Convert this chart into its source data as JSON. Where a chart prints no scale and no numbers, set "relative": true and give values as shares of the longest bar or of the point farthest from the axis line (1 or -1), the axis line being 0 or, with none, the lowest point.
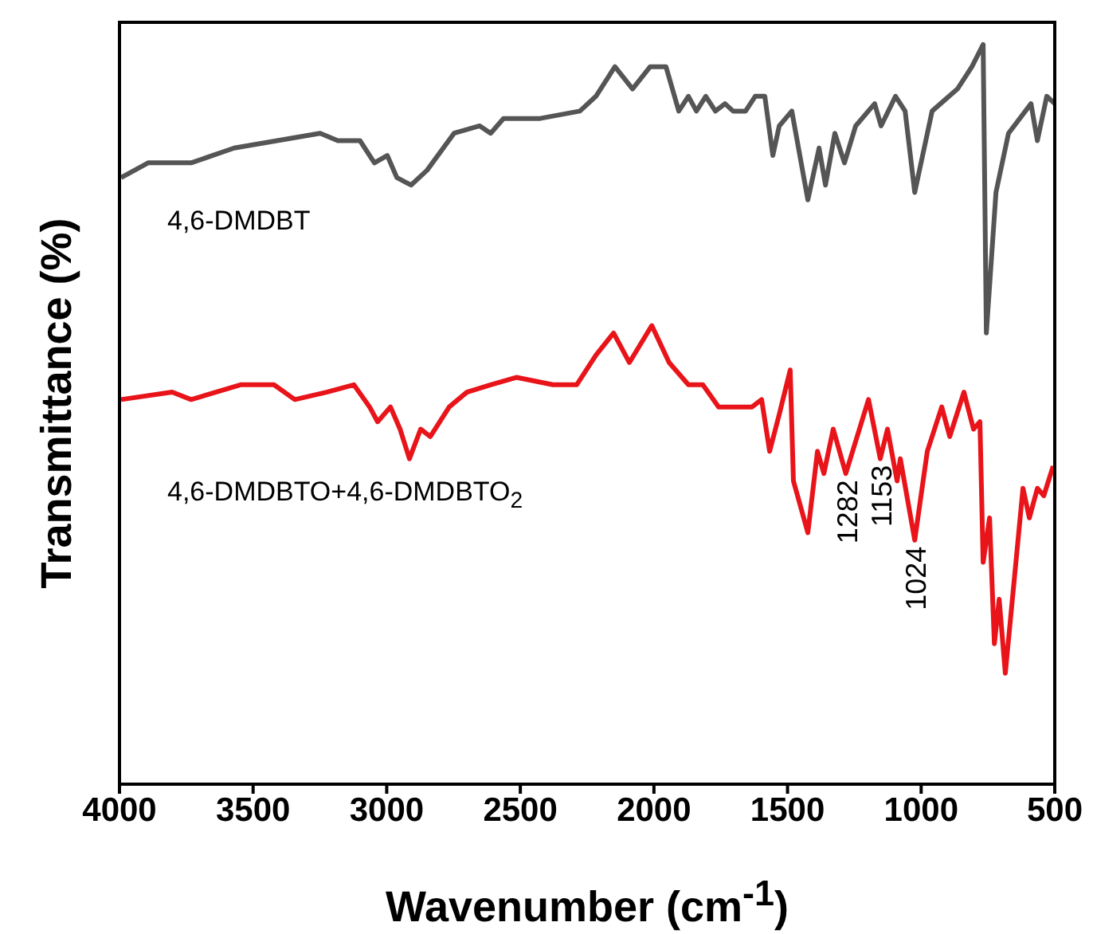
{
  "chart_data": {
    "type": "line",
    "relative": true,
    "xlabel": "Wavenumber (cm$^{-1}$)",
    "ylabel": "Transmittance (%)",
    "xlim": [
      4000,
      500
    ],
    "xticks": [
      4000,
      3500,
      3000,
      2500,
      2000,
      1500,
      1000,
      500
    ],
    "grid": false,
    "legend": false,
    "marker": "none",
    "line_style": "solid",
    "annotations": [
      {
        "text": "1282",
        "x": 1282,
        "y": 0.42
      },
      {
        "text": "1153",
        "x": 1153,
        "y": 0.44
      },
      {
        "text": "1024",
        "x": 1024,
        "y": 0.33
      }
    ],
    "series": [
      {
        "name": "4,6-DMDBT",
        "color": "#555555",
        "x": [
          3994,
          3893,
          3732,
          3571,
          3410,
          3249,
          3183,
          3100,
          3046,
          2998,
          2962,
          2909,
          2849,
          2748,
          2652,
          2611,
          2563,
          2426,
          2277,
          2217,
          2146,
          2080,
          2014,
          1955,
          1907,
          1871,
          1841,
          1806,
          1770,
          1734,
          1704,
          1657,
          1621,
          1585,
          1555,
          1531,
          1484,
          1424,
          1382,
          1358,
          1323,
          1287,
          1245,
          1174,
          1150,
          1096,
          1060,
          1024,
          959,
          864,
          810,
          768,
          756,
          720,
          673,
          589,
          565,
          530,
          500
        ],
        "values": [
          0.82,
          0.84,
          0.84,
          0.86,
          0.87,
          0.88,
          0.87,
          0.87,
          0.84,
          0.85,
          0.82,
          0.81,
          0.83,
          0.88,
          0.89,
          0.88,
          0.9,
          0.9,
          0.91,
          0.93,
          0.97,
          0.94,
          0.97,
          0.97,
          0.91,
          0.93,
          0.91,
          0.93,
          0.91,
          0.92,
          0.91,
          0.91,
          0.93,
          0.93,
          0.85,
          0.89,
          0.91,
          0.79,
          0.86,
          0.81,
          0.88,
          0.84,
          0.89,
          0.92,
          0.89,
          0.93,
          0.91,
          0.8,
          0.91,
          0.94,
          0.97,
          1.0,
          0.61,
          0.8,
          0.88,
          0.92,
          0.87,
          0.93,
          0.92
        ]
      },
      {
        "name": "4,6-DMDBTO+4,6-DMDBTO$_{2}$",
        "color": "#e8141a",
        "x": [
          3994,
          3803,
          3732,
          3547,
          3422,
          3344,
          3225,
          3123,
          3064,
          3034,
          2986,
          2950,
          2915,
          2873,
          2837,
          2766,
          2700,
          2611,
          2515,
          2378,
          2289,
          2217,
          2151,
          2092,
          2008,
          1943,
          1871,
          1817,
          1758,
          1692,
          1633,
          1597,
          1567,
          1531,
          1490,
          1478,
          1424,
          1388,
          1364,
          1329,
          1282,
          1197,
          1153,
          1126,
          1090,
          1078,
          1024,
          977,
          923,
          893,
          840,
          804,
          780,
          768,
          744,
          726,
          708,
          685,
          619,
          595,
          565,
          541,
          506
        ],
        "values": [
          0.52,
          0.53,
          0.52,
          0.54,
          0.54,
          0.52,
          0.53,
          0.54,
          0.51,
          0.49,
          0.51,
          0.48,
          0.44,
          0.48,
          0.47,
          0.51,
          0.53,
          0.54,
          0.55,
          0.54,
          0.54,
          0.58,
          0.61,
          0.57,
          0.62,
          0.57,
          0.54,
          0.54,
          0.51,
          0.51,
          0.51,
          0.52,
          0.45,
          0.5,
          0.56,
          0.41,
          0.34,
          0.45,
          0.42,
          0.48,
          0.42,
          0.52,
          0.44,
          0.48,
          0.41,
          0.44,
          0.33,
          0.45,
          0.51,
          0.47,
          0.53,
          0.48,
          0.49,
          0.3,
          0.36,
          0.19,
          0.25,
          0.15,
          0.4,
          0.36,
          0.4,
          0.39,
          0.43
        ]
      }
    ]
  }
}
